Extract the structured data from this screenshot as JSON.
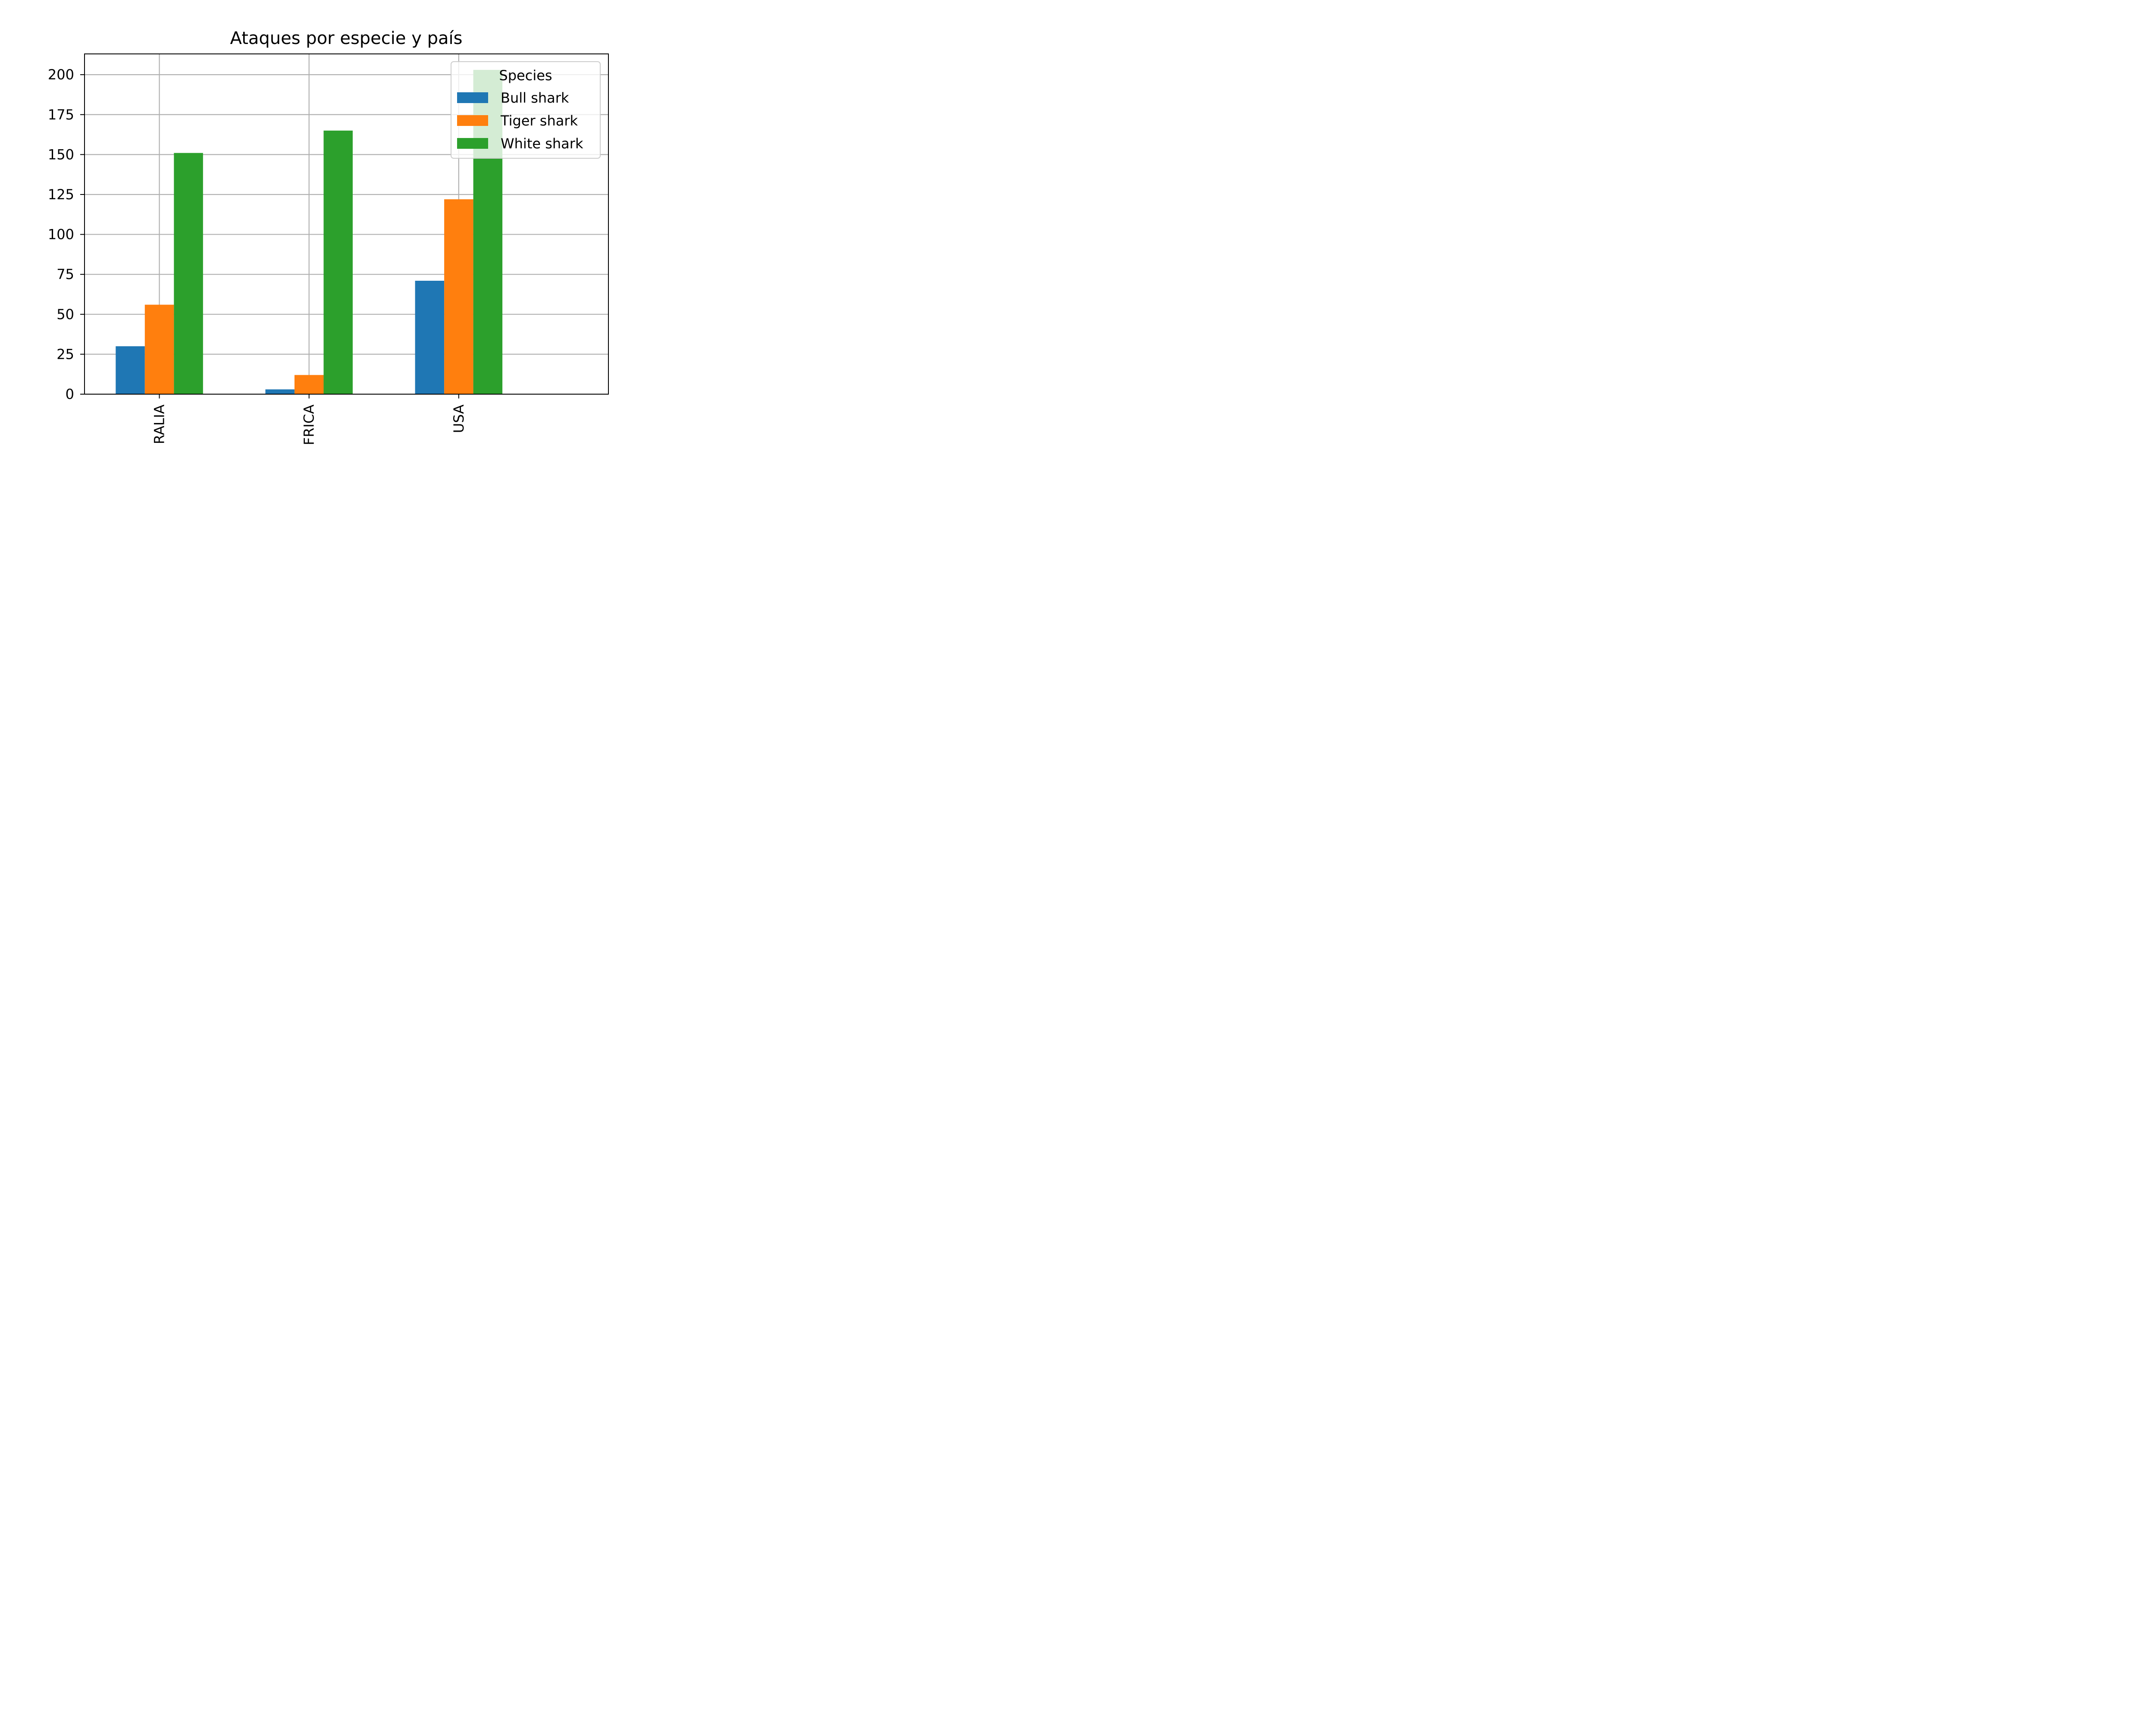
{
  "chart_data": {
    "type": "bar",
    "title": "Ataques por especie y país",
    "xlabel": "",
    "ylabel": "",
    "categories": [
      "RALIA",
      "FRICA",
      "USA"
    ],
    "series": [
      {
        "name": "Bull shark",
        "values": [
          30,
          3,
          71
        ],
        "color": "#1f77b4"
      },
      {
        "name": "Tiger shark",
        "values": [
          56,
          12,
          122
        ],
        "color": "#ff7f0e"
      },
      {
        "name": "White shark",
        "values": [
          151,
          165,
          203
        ],
        "color": "#2ca02c"
      }
    ],
    "ylim": [
      0,
      213
    ],
    "yticks": [
      0,
      25,
      50,
      75,
      100,
      125,
      150,
      175,
      200
    ],
    "grid": true,
    "legend": {
      "title": "Species",
      "placement": "top-right"
    }
  }
}
